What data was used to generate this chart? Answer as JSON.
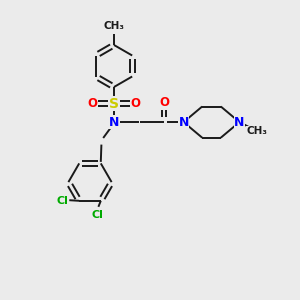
{
  "background_color": "#ebebeb",
  "bond_color": "#1a1a1a",
  "atom_colors": {
    "N": "#0000ff",
    "O": "#ff0000",
    "S": "#cccc00",
    "Cl": "#00aa00",
    "C": "#1a1a1a",
    "H": "#1a1a1a"
  },
  "figsize": [
    3.0,
    3.0
  ],
  "dpi": 100,
  "xlim": [
    0,
    10
  ],
  "ylim": [
    0,
    10
  ]
}
